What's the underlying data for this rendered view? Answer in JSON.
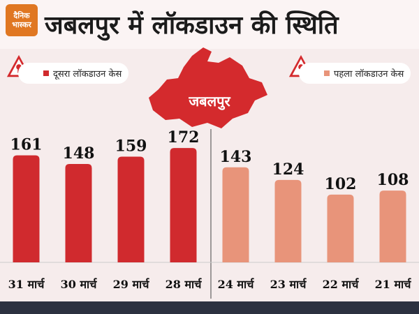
{
  "brand": {
    "line1": "दैनिक",
    "line2": "भास्कर"
  },
  "title": "जबलपुर में लॉकडाउन की स्थिति",
  "map_label": "जबलपुर",
  "colors": {
    "second": "#d02a2e",
    "first": "#e8947a",
    "accent": "#d42a2d"
  },
  "icons": [
    "warning-lock-icon",
    "virus-icon",
    "map-shape-icon"
  ],
  "chart_data": {
    "type": "bar",
    "title": "जबलपुर में लॉकडाउन की स्थिति",
    "xlabel": "",
    "ylabel": "",
    "ylim": [
      0,
      190
    ],
    "categories": [
      "31 मार्च",
      "30 मार्च",
      "29 मार्च",
      "28 मार्च",
      "24 मार्च",
      "23 मार्च",
      "22 मार्च",
      "21 मार्च"
    ],
    "series": [
      {
        "name": "दूसरा लॉकडाउन केस",
        "values": [
          161,
          148,
          159,
          172,
          null,
          null,
          null,
          null
        ]
      },
      {
        "name": "पहला लॉकडाउन केस",
        "values": [
          null,
          null,
          null,
          null,
          143,
          124,
          102,
          108
        ]
      }
    ],
    "legend_position": "top"
  }
}
